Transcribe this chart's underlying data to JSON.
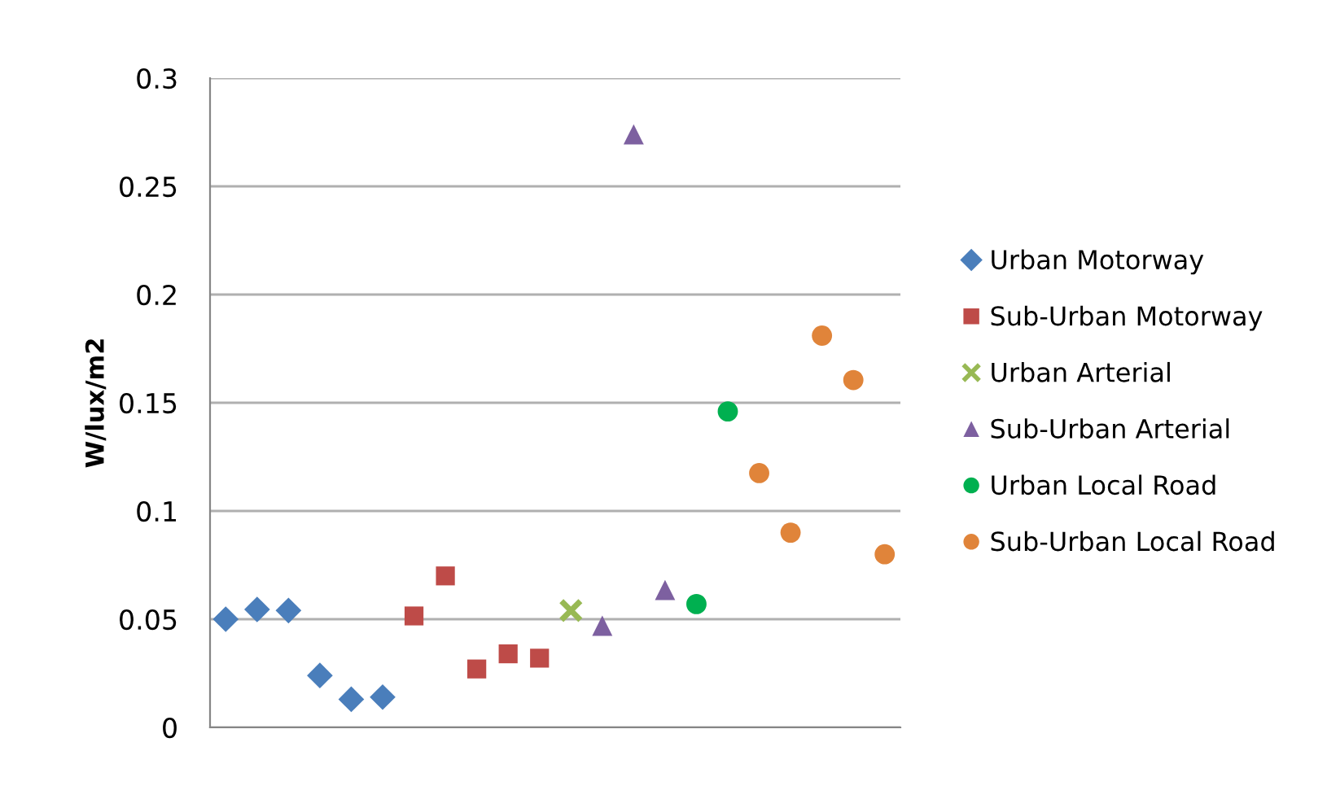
{
  "chart_data": {
    "type": "scatter",
    "ylabel": "W/lux/m2",
    "categories": [
      null,
      null,
      null,
      null,
      null,
      null,
      null,
      null,
      null,
      null,
      null,
      null,
      null,
      null,
      null,
      null,
      null,
      null,
      null,
      null,
      null,
      null
    ],
    "series": [
      {
        "name": "Urban Motorway",
        "color": "#4a7ebb",
        "marker": "diamond",
        "values": [
          0.05,
          0.0545,
          0.054,
          0.024,
          0.013,
          0.014,
          null,
          null,
          null,
          null,
          null,
          null,
          null,
          null,
          null,
          null,
          null,
          null,
          null,
          null,
          null,
          null
        ]
      },
      {
        "name": "Sub-Urban Motorway",
        "color": "#be4b48",
        "marker": "square",
        "values": [
          null,
          null,
          null,
          null,
          null,
          null,
          0.0515,
          0.07,
          0.027,
          0.034,
          0.032,
          null,
          null,
          null,
          null,
          null,
          null,
          null,
          null,
          null,
          null,
          null
        ]
      },
      {
        "name": "Urban Arterial",
        "color": "#98b954",
        "marker": "cross",
        "values": [
          null,
          null,
          null,
          null,
          null,
          null,
          null,
          null,
          null,
          null,
          null,
          0.054,
          null,
          null,
          null,
          null,
          null,
          null,
          null,
          null,
          null,
          null
        ]
      },
      {
        "name": "Sub-Urban Arterial",
        "color": "#7d60a0",
        "marker": "triangle",
        "values": [
          null,
          null,
          null,
          null,
          null,
          null,
          null,
          null,
          null,
          null,
          null,
          null,
          0.047,
          0.274,
          0.0635,
          null,
          null,
          null,
          null,
          null,
          null,
          null
        ]
      },
      {
        "name": "Urban Local Road",
        "color": "#00b050",
        "marker": "circle",
        "values": [
          null,
          null,
          null,
          null,
          null,
          null,
          null,
          null,
          null,
          null,
          null,
          null,
          null,
          null,
          null,
          0.057,
          0.146,
          null,
          null,
          null,
          null,
          null
        ]
      },
      {
        "name": "Sub-Urban Local Road",
        "color": "#e0843a",
        "marker": "circle",
        "values": [
          null,
          null,
          null,
          null,
          null,
          null,
          null,
          null,
          null,
          null,
          null,
          null,
          null,
          null,
          null,
          null,
          null,
          0.1175,
          0.09,
          0.181,
          0.1605,
          0.08
        ]
      }
    ],
    "ylim": [
      0,
      0.3
    ],
    "yticks": [
      0,
      0.05,
      0.1,
      0.15,
      0.2,
      0.25,
      0.3
    ],
    "grid": "y",
    "legend": "right"
  }
}
